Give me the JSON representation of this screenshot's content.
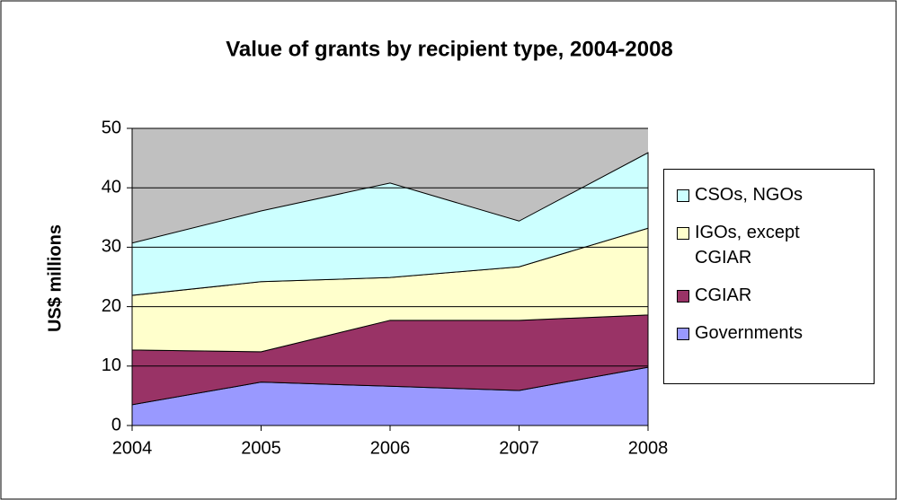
{
  "chart_data": {
    "type": "stacked_area",
    "title": "Value of grants by recipient type, 2004-2008",
    "y_label": "US$ millions",
    "categories": [
      "2004",
      "2005",
      "2006",
      "2007",
      "2008"
    ],
    "series": [
      {
        "name": "Governments",
        "color": "#9999ff",
        "values": [
          3.5,
          7.3,
          6.6,
          5.9,
          9.8
        ]
      },
      {
        "name": "CGIAR",
        "color": "#993366",
        "values": [
          9.2,
          5.1,
          11.1,
          11.8,
          8.8
        ]
      },
      {
        "name": "IGOs, except CGIAR",
        "color": "#ffffcc",
        "values": [
          9.2,
          11.8,
          7.2,
          9.0,
          14.6
        ]
      },
      {
        "name": "CSOs, NGOs",
        "color": "#ccffff",
        "values": [
          8.8,
          11.9,
          15.9,
          7.7,
          12.7
        ]
      }
    ],
    "ylim": [
      0,
      50
    ],
    "yticks": [
      0,
      10,
      20,
      30,
      40,
      50
    ],
    "grid": true,
    "plot_background": "#c0c0c0",
    "legend": "right"
  }
}
